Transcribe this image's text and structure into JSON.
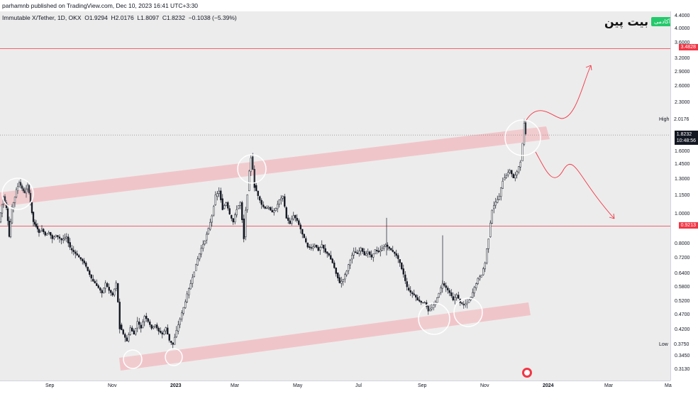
{
  "header": {
    "published": "parhamnb published on TradingView.com, Dec 10, 2023 16:41 UTC+3:30",
    "symbol": "Immutable X/Tether, 1D, OKX  O1.9294  H2.0176  L1.8097  C1.8232  −0.1038 (−5.39%)"
  },
  "brand": {
    "name": "بیت پین",
    "badge": "آکادمی"
  },
  "colors": {
    "bull": "#131722",
    "resistance_line": "#f23645",
    "channel_fill": "#f2b8bd",
    "circle": "#ffffff",
    "projection": "#f23645",
    "plot_bg": "#ececec"
  },
  "chart_data": {
    "type": "candlestick",
    "scale": "log",
    "ylim": [
      0.29,
      4.6
    ],
    "x_ticks": [
      "Sep",
      "Nov",
      "2023",
      "Mar",
      "May",
      "Jul",
      "Sep",
      "Nov",
      "2024",
      "Mar",
      "Ma"
    ],
    "y_ticks": [
      "4.4000",
      "4.0000",
      "3.6000",
      "3.2000",
      "2.9000",
      "2.6000",
      "2.3000",
      "1.6000",
      "1.4500",
      "1.3000",
      "1.1500",
      "1.0000",
      "0.8000",
      "0.7200",
      "0.6400",
      "0.5800",
      "0.5200",
      "0.4700",
      "0.4200",
      "0.3450",
      "0.3130"
    ],
    "horizontal_levels": [
      {
        "label": "3.4828",
        "value": 3.4828
      },
      {
        "label": "0.9213",
        "value": 0.9213
      }
    ],
    "last_price": {
      "value": "1.8232",
      "countdown": "10:48:56"
    },
    "high": {
      "label": "High",
      "value": "2.0176"
    },
    "low": {
      "label": "Low",
      "value": "0.3750"
    },
    "path_points": [
      [
        0,
        0.95
      ],
      [
        6,
        1.15
      ],
      [
        10,
        1.05
      ],
      [
        14,
        0.85
      ],
      [
        18,
        1.05
      ],
      [
        24,
        1.2
      ],
      [
        28,
        1.28
      ],
      [
        32,
        1.22
      ],
      [
        36,
        1.18
      ],
      [
        40,
        1.25
      ],
      [
        44,
        1.1
      ],
      [
        48,
        0.95
      ],
      [
        52,
        0.92
      ],
      [
        56,
        0.88
      ],
      [
        60,
        0.9
      ],
      [
        65,
        0.86
      ],
      [
        70,
        0.88
      ],
      [
        75,
        0.84
      ],
      [
        80,
        0.86
      ],
      [
        88,
        0.83
      ],
      [
        95,
        0.85
      ],
      [
        100,
        0.78
      ],
      [
        105,
        0.76
      ],
      [
        110,
        0.74
      ],
      [
        115,
        0.72
      ],
      [
        120,
        0.7
      ],
      [
        125,
        0.66
      ],
      [
        130,
        0.62
      ],
      [
        135,
        0.6
      ],
      [
        140,
        0.58
      ],
      [
        145,
        0.56
      ],
      [
        150,
        0.6
      ],
      [
        155,
        0.57
      ],
      [
        160,
        0.55
      ],
      [
        165,
        0.6
      ],
      [
        170,
        0.44
      ],
      [
        175,
        0.41
      ],
      [
        180,
        0.39
      ],
      [
        185,
        0.43
      ],
      [
        190,
        0.41
      ],
      [
        195,
        0.45
      ],
      [
        200,
        0.43
      ],
      [
        205,
        0.47
      ],
      [
        210,
        0.45
      ],
      [
        215,
        0.43
      ],
      [
        220,
        0.44
      ],
      [
        225,
        0.42
      ],
      [
        230,
        0.41
      ],
      [
        235,
        0.43
      ],
      [
        240,
        0.39
      ],
      [
        245,
        0.38
      ],
      [
        250,
        0.42
      ],
      [
        255,
        0.46
      ],
      [
        260,
        0.5
      ],
      [
        265,
        0.55
      ],
      [
        270,
        0.6
      ],
      [
        275,
        0.66
      ],
      [
        280,
        0.72
      ],
      [
        285,
        0.78
      ],
      [
        290,
        0.83
      ],
      [
        295,
        0.9
      ],
      [
        300,
        1.0
      ],
      [
        305,
        1.15
      ],
      [
        310,
        1.2
      ],
      [
        315,
        1.05
      ],
      [
        320,
        1.1
      ],
      [
        325,
        1.0
      ],
      [
        330,
        0.95
      ],
      [
        335,
        1.05
      ],
      [
        340,
        1.1
      ],
      [
        345,
        0.85
      ],
      [
        350,
        1.2
      ],
      [
        355,
        1.55
      ],
      [
        360,
        1.25
      ],
      [
        365,
        1.15
      ],
      [
        370,
        1.08
      ],
      [
        375,
        1.05
      ],
      [
        380,
        1.06
      ],
      [
        385,
        1.02
      ],
      [
        390,
        1.05
      ],
      [
        395,
        1.12
      ],
      [
        400,
        1.15
      ],
      [
        405,
        0.98
      ],
      [
        410,
        0.94
      ],
      [
        415,
        1.0
      ],
      [
        420,
        0.96
      ],
      [
        425,
        0.9
      ],
      [
        430,
        0.84
      ],
      [
        435,
        0.79
      ],
      [
        440,
        0.78
      ],
      [
        445,
        0.8
      ],
      [
        450,
        0.77
      ],
      [
        455,
        0.8
      ],
      [
        460,
        0.76
      ],
      [
        465,
        0.74
      ],
      [
        470,
        0.7
      ],
      [
        475,
        0.65
      ],
      [
        480,
        0.6
      ],
      [
        485,
        0.62
      ],
      [
        490,
        0.66
      ],
      [
        495,
        0.72
      ],
      [
        500,
        0.76
      ],
      [
        505,
        0.75
      ],
      [
        510,
        0.78
      ],
      [
        515,
        0.74
      ],
      [
        520,
        0.76
      ],
      [
        525,
        0.73
      ],
      [
        530,
        0.77
      ],
      [
        535,
        0.76
      ],
      [
        540,
        0.78
      ],
      [
        545,
        0.8
      ],
      [
        550,
        0.78
      ],
      [
        555,
        0.76
      ],
      [
        560,
        0.74
      ],
      [
        565,
        0.7
      ],
      [
        570,
        0.64
      ],
      [
        575,
        0.58
      ],
      [
        580,
        0.56
      ],
      [
        585,
        0.55
      ],
      [
        590,
        0.53
      ],
      [
        595,
        0.52
      ],
      [
        600,
        0.52
      ],
      [
        605,
        0.49
      ],
      [
        610,
        0.5
      ],
      [
        615,
        0.52
      ],
      [
        620,
        0.56
      ],
      [
        625,
        0.6
      ],
      [
        630,
        0.58
      ],
      [
        635,
        0.56
      ],
      [
        640,
        0.53
      ],
      [
        645,
        0.55
      ],
      [
        650,
        0.52
      ],
      [
        655,
        0.51
      ],
      [
        660,
        0.52
      ],
      [
        665,
        0.54
      ],
      [
        670,
        0.58
      ],
      [
        675,
        0.62
      ],
      [
        680,
        0.64
      ],
      [
        685,
        0.7
      ],
      [
        690,
        0.85
      ],
      [
        695,
        1.05
      ],
      [
        700,
        1.1
      ],
      [
        705,
        1.15
      ],
      [
        710,
        1.3
      ],
      [
        715,
        1.35
      ],
      [
        720,
        1.4
      ],
      [
        725,
        1.32
      ],
      [
        730,
        1.38
      ],
      [
        735,
        1.5
      ],
      [
        738,
        1.7
      ],
      [
        740,
        2.0
      ],
      [
        742,
        1.82
      ]
    ]
  }
}
